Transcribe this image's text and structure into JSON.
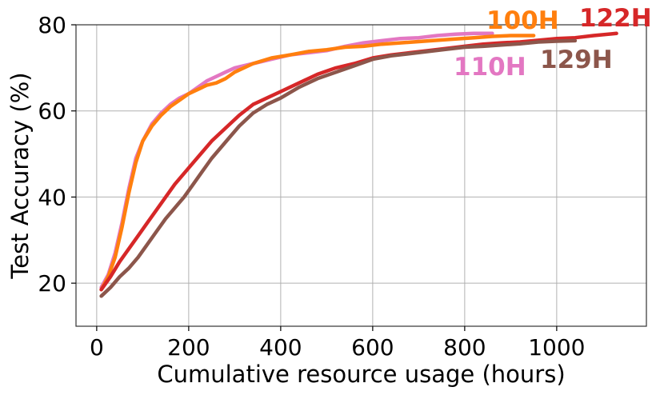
{
  "chart_data": {
    "type": "line",
    "title": "",
    "xlabel": "Cumulative resource usage (hours)",
    "ylabel": "Test Accuracy (%)",
    "xlim": [
      -45,
      1195
    ],
    "ylim": [
      10,
      80
    ],
    "xticks": [
      0,
      200,
      400,
      600,
      800,
      1000
    ],
    "yticks": [
      20,
      40,
      60,
      80
    ],
    "grid": true,
    "legend": "none",
    "series": [
      {
        "name": "110H",
        "color": "#e377c2",
        "x": [
          10,
          25,
          40,
          55,
          70,
          85,
          100,
          120,
          140,
          160,
          180,
          200,
          220,
          240,
          260,
          280,
          300,
          340,
          380,
          420,
          460,
          500,
          540,
          580,
          620,
          660,
          700,
          740,
          780,
          820,
          860
        ],
        "y": [
          19,
          22,
          27,
          34,
          42,
          49,
          53,
          57,
          59.5,
          61.5,
          63,
          64,
          65.5,
          67,
          68,
          69,
          70,
          71,
          72,
          73,
          73.5,
          74,
          75,
          75.8,
          76.3,
          76.8,
          77,
          77.5,
          77.8,
          78,
          78
        ]
      },
      {
        "name": "100H",
        "color": "#ff7f0e",
        "x": [
          10,
          25,
          40,
          55,
          70,
          85,
          100,
          120,
          140,
          160,
          180,
          200,
          220,
          240,
          260,
          280,
          300,
          340,
          380,
          420,
          460,
          500,
          540,
          580,
          620,
          660,
          700,
          740,
          780,
          820,
          860,
          900,
          950
        ],
        "y": [
          18.5,
          21.5,
          26,
          33,
          41,
          48,
          53,
          56.5,
          59,
          61,
          62.5,
          64,
          65,
          66,
          66.5,
          67.5,
          69,
          71,
          72.3,
          73,
          73.8,
          74.2,
          74.8,
          75,
          75.5,
          75.8,
          76.1,
          76.4,
          76.7,
          77,
          77.3,
          77.5,
          77.5
        ]
      },
      {
        "name": "122H",
        "color": "#d62728",
        "x": [
          10,
          30,
          50,
          70,
          90,
          110,
          130,
          150,
          170,
          190,
          210,
          230,
          250,
          270,
          290,
          310,
          340,
          370,
          400,
          440,
          480,
          520,
          560,
          600,
          640,
          680,
          720,
          760,
          800,
          840,
          880,
          920,
          960,
          1000,
          1040,
          1080,
          1130
        ],
        "y": [
          18.5,
          21.5,
          25,
          28,
          31,
          34,
          37,
          40,
          43,
          45.5,
          48,
          50.5,
          53,
          55,
          57,
          59,
          61.5,
          63,
          64.5,
          66.5,
          68.5,
          70,
          71,
          72.3,
          73,
          73.5,
          74,
          74.5,
          75,
          75.5,
          75.8,
          76,
          76.4,
          76.8,
          77,
          77.5,
          78
        ]
      },
      {
        "name": "129H",
        "color": "#8c564b",
        "x": [
          10,
          30,
          50,
          70,
          90,
          110,
          130,
          150,
          170,
          190,
          210,
          230,
          250,
          270,
          290,
          310,
          340,
          370,
          400,
          440,
          480,
          520,
          560,
          600,
          640,
          680,
          720,
          760,
          800,
          840,
          880,
          920,
          960,
          1000,
          1040
        ],
        "y": [
          17,
          19,
          21.5,
          23.5,
          26,
          29,
          32,
          35,
          37.5,
          40,
          43,
          46,
          49,
          51.5,
          54,
          56.5,
          59.5,
          61.5,
          63,
          65.5,
          67.5,
          69,
          70.5,
          72,
          72.8,
          73.3,
          73.8,
          74.3,
          74.8,
          75,
          75.3,
          75.6,
          76,
          76.2,
          76.3
        ]
      }
    ]
  }
}
